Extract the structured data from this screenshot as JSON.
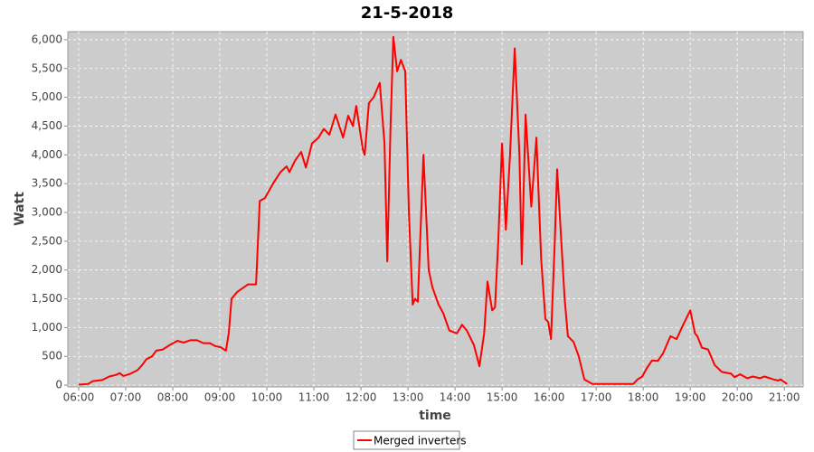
{
  "chart_data": {
    "type": "line",
    "title": "21-5-2018",
    "x_label": "time",
    "y_label": "Watt",
    "x": [
      6.0,
      6.2,
      6.3,
      6.5,
      6.65,
      6.8,
      6.87,
      6.95,
      7.1,
      7.25,
      7.35,
      7.44,
      7.56,
      7.65,
      7.79,
      7.94,
      8.1,
      8.23,
      8.37,
      8.52,
      8.65,
      8.79,
      8.9,
      9.02,
      9.13,
      9.19,
      9.25,
      9.37,
      9.6,
      9.77,
      9.85,
      9.96,
      10.13,
      10.29,
      10.42,
      10.48,
      10.6,
      10.73,
      10.83,
      10.96,
      11.1,
      11.21,
      11.33,
      11.46,
      11.62,
      11.73,
      11.83,
      11.9,
      12.04,
      12.08,
      12.17,
      12.27,
      12.4,
      12.5,
      12.56,
      12.63,
      12.69,
      12.77,
      12.85,
      12.94,
      13.02,
      13.1,
      13.15,
      13.21,
      13.33,
      13.44,
      13.52,
      13.65,
      13.75,
      13.88,
      14.04,
      14.15,
      14.25,
      14.4,
      14.52,
      14.62,
      14.69,
      14.79,
      14.85,
      14.92,
      15.0,
      15.08,
      15.17,
      15.27,
      15.37,
      15.42,
      15.5,
      15.62,
      15.73,
      15.83,
      15.92,
      15.98,
      16.04,
      16.12,
      16.17,
      16.33,
      16.4,
      16.52,
      16.63,
      16.75,
      16.92,
      17.79,
      17.88,
      17.98,
      18.08,
      18.19,
      18.31,
      18.42,
      18.58,
      18.71,
      18.85,
      19.0,
      19.1,
      19.15,
      19.25,
      19.38,
      19.52,
      19.67,
      19.87,
      19.94,
      20.06,
      20.21,
      20.33,
      20.48,
      20.58,
      20.77,
      20.87,
      20.92,
      21.06
    ],
    "series": [
      {
        "name": "Merged inverters",
        "color": "#ff0000",
        "values": [
          10,
          20,
          70,
          90,
          150,
          180,
          210,
          160,
          200,
          260,
          350,
          450,
          500,
          600,
          620,
          700,
          770,
          740,
          780,
          780,
          730,
          730,
          680,
          660,
          600,
          900,
          1500,
          1620,
          1750,
          1750,
          3200,
          3250,
          3500,
          3700,
          3800,
          3700,
          3900,
          4050,
          3780,
          4200,
          4300,
          4450,
          4350,
          4700,
          4300,
          4680,
          4500,
          4850,
          4100,
          4000,
          4900,
          5000,
          5250,
          4200,
          2150,
          4500,
          6050,
          5450,
          5650,
          5450,
          3000,
          1400,
          1500,
          1450,
          4000,
          2000,
          1700,
          1400,
          1250,
          950,
          900,
          1050,
          950,
          700,
          330,
          900,
          1800,
          1300,
          1350,
          2500,
          4200,
          2700,
          4000,
          5850,
          4000,
          2100,
          4700,
          3100,
          4300,
          2200,
          1150,
          1100,
          800,
          2500,
          3750,
          1500,
          850,
          750,
          500,
          100,
          20,
          20,
          100,
          150,
          300,
          430,
          420,
          550,
          850,
          800,
          1050,
          1300,
          900,
          850,
          650,
          620,
          350,
          230,
          200,
          140,
          190,
          120,
          150,
          120,
          150,
          100,
          80,
          100,
          20
        ]
      }
    ],
    "xlim": [
      5.77,
      21.4
    ],
    "ylim": [
      -30,
      6140
    ],
    "xticks": [
      {
        "value": 6,
        "label": "06:00"
      },
      {
        "value": 7,
        "label": "07:00"
      },
      {
        "value": 8,
        "label": "08:00"
      },
      {
        "value": 9,
        "label": "09:00"
      },
      {
        "value": 10,
        "label": "10:00"
      },
      {
        "value": 11,
        "label": "11:00"
      },
      {
        "value": 12,
        "label": "12:00"
      },
      {
        "value": 13,
        "label": "13:00"
      },
      {
        "value": 14,
        "label": "14:00"
      },
      {
        "value": 15,
        "label": "15:00"
      },
      {
        "value": 16,
        "label": "16:00"
      },
      {
        "value": 17,
        "label": "17:00"
      },
      {
        "value": 18,
        "label": "18:00"
      },
      {
        "value": 19,
        "label": "19:00"
      },
      {
        "value": 20,
        "label": "20:00"
      },
      {
        "value": 21,
        "label": "21:00"
      }
    ],
    "yticks": [
      0,
      500,
      {
        "value": 1000,
        "label": "1,000"
      },
      {
        "value": 1500,
        "label": "1,500"
      },
      {
        "value": 2000,
        "label": "2,000"
      },
      {
        "value": 2500,
        "label": "2,500"
      },
      {
        "value": 3000,
        "label": "3,000"
      },
      {
        "value": 3500,
        "label": "3,500"
      },
      {
        "value": 4000,
        "label": "4,000"
      },
      {
        "value": 4500,
        "label": "4,500"
      },
      {
        "value": 5000,
        "label": "5,000"
      },
      {
        "value": 5500,
        "label": "5,500"
      },
      {
        "value": 6000,
        "label": "6,000"
      }
    ],
    "grid": true
  }
}
